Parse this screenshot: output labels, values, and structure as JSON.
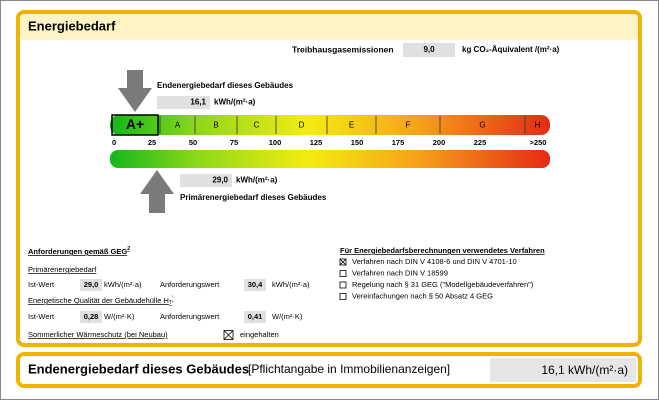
{
  "header": {
    "title": "Energiebedarf"
  },
  "emissions": {
    "label": "Treibhausgasemissionen",
    "value": "9,0",
    "unit": "kg CO₂-Äquivalent /(m²·a)"
  },
  "end_energy": {
    "label": "Endenergiebedarf dieses Gebäudes",
    "value": "16,1",
    "unit": "kWh/(m²·a)"
  },
  "scale": {
    "classes": [
      "A+",
      "A",
      "B",
      "C",
      "D",
      "E",
      "F",
      "G",
      "H"
    ],
    "ticks": [
      "0",
      "25",
      "50",
      "75",
      "100",
      "125",
      "150",
      "175",
      "200",
      "225",
      ">250"
    ]
  },
  "primary_energy": {
    "label": "Primärenergiebedarf dieses Gebäudes",
    "value": "29,0",
    "unit": "kWh/(m²·a)"
  },
  "requirements": {
    "title": "Anforderungen gemäß GEG",
    "footnote": "2",
    "primary_title": "Primärenergiebedarf",
    "primary_row": [
      "Ist-Wert",
      "29,0",
      "kWh/(m²·a)",
      "Anforderungswert",
      "30,4",
      "kWh/(m²·a)"
    ],
    "envelope_title": "Energetische Qualität der Gebäudehülle H",
    "envelope_sub": "T",
    "envelope_sup": "'",
    "envelope_row": [
      "Ist-Wert",
      "0,28",
      "W/(m²·K)",
      "Anforderungswert",
      "0,41",
      "W/(m²·K)"
    ],
    "summer": "Sommerlicher Wärmeschutz (bei Neubau)",
    "summer_checked": true,
    "summer_status": "eingehalten"
  },
  "methods": {
    "title": "Für Energiebedarfsberechnungen verwendetes Verfahren",
    "options": [
      {
        "label": "Verfahren nach DIN V 4108-6 und DIN V 4701-10",
        "checked": true
      },
      {
        "label": "Verfahren nach DIN V 18599",
        "checked": false
      },
      {
        "label": "Regelung nach § 31 GEG (\"Modellgebäudeverfahren\")",
        "checked": false
      },
      {
        "label": "Vereinfachungen nach § 50 Absatz 4 GEG",
        "checked": false
      }
    ]
  },
  "footer": {
    "title": "Endenergiebedarf dieses Gebäudes",
    "note": "[Pflichtangabe in Immobilienanzeigen]",
    "value": "16,1 kWh/(m²·a)"
  }
}
